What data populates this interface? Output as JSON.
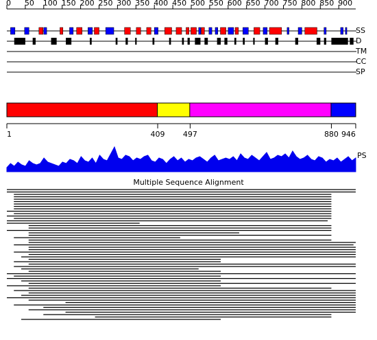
{
  "ruler": {
    "ticks": [
      0,
      50,
      100,
      150,
      200,
      250,
      300,
      350,
      400,
      450,
      500,
      550,
      600,
      650,
      700,
      750,
      800,
      850,
      900
    ]
  },
  "tracks": [
    "SS",
    "D",
    "TM",
    "CC",
    "SP"
  ],
  "ss": {
    "helix_color": "#ff0000",
    "strand_color": "#0000ff",
    "helix": [
      [
        87,
        98
      ],
      [
        144,
        152
      ],
      [
        189,
        204
      ],
      [
        237,
        250
      ],
      [
        319,
        335
      ],
      [
        351,
        363
      ],
      [
        379,
        391
      ],
      [
        428,
        447
      ],
      [
        459,
        474
      ],
      [
        486,
        494
      ],
      [
        499,
        514
      ],
      [
        527,
        536
      ],
      [
        579,
        594
      ],
      [
        619,
        628
      ],
      [
        670,
        686
      ],
      [
        712,
        745
      ],
      [
        808,
        841
      ]
    ],
    "strand": [
      [
        10,
        22
      ],
      [
        48,
        60
      ],
      [
        100,
        108
      ],
      [
        170,
        180
      ],
      [
        220,
        232
      ],
      [
        268,
        290
      ],
      [
        400,
        410
      ],
      [
        520,
        526
      ],
      [
        548,
        556
      ],
      [
        565,
        572
      ],
      [
        600,
        615
      ],
      [
        640,
        655
      ],
      [
        695,
        706
      ],
      [
        760,
        765
      ],
      [
        790,
        800
      ],
      [
        860,
        866
      ],
      [
        905,
        912
      ],
      [
        918,
        922
      ]
    ]
  },
  "disorder": [
    [
      20,
      50
    ],
    [
      70,
      78
    ],
    [
      120,
      135
    ],
    [
      160,
      175
    ],
    [
      225,
      230
    ],
    [
      295,
      300
    ],
    [
      322,
      328
    ],
    [
      348,
      352
    ],
    [
      395,
      400
    ],
    [
      440,
      445
    ],
    [
      475,
      480
    ],
    [
      490,
      496
    ],
    [
      510,
      525
    ],
    [
      536,
      545
    ],
    [
      570,
      580
    ],
    [
      590,
      598
    ],
    [
      617,
      622
    ],
    [
      640,
      645
    ],
    [
      668,
      672
    ],
    [
      700,
      708
    ],
    [
      728,
      736
    ],
    [
      782,
      790
    ],
    [
      840,
      850
    ],
    [
      860,
      866
    ],
    [
      880,
      925
    ],
    [
      930,
      940
    ]
  ],
  "domains": {
    "boundaries": [
      1,
      409,
      497,
      880,
      946
    ],
    "colors": [
      "#ff0000",
      "#ffff00",
      "#ff00ff",
      "#0000ff"
    ]
  },
  "ps": {
    "label": "PS",
    "color": "#0000ee",
    "ylim": [
      0,
      1
    ],
    "values": [
      0.15,
      0.3,
      0.2,
      0.35,
      0.25,
      0.2,
      0.4,
      0.3,
      0.25,
      0.3,
      0.5,
      0.35,
      0.3,
      0.25,
      0.2,
      0.35,
      0.3,
      0.45,
      0.4,
      0.3,
      0.55,
      0.4,
      0.35,
      0.5,
      0.3,
      0.6,
      0.45,
      0.4,
      0.65,
      0.9,
      0.5,
      0.45,
      0.6,
      0.55,
      0.4,
      0.5,
      0.45,
      0.55,
      0.6,
      0.4,
      0.35,
      0.5,
      0.45,
      0.3,
      0.45,
      0.55,
      0.4,
      0.5,
      0.35,
      0.45,
      0.4,
      0.5,
      0.55,
      0.45,
      0.35,
      0.5,
      0.6,
      0.4,
      0.45,
      0.5,
      0.45,
      0.55,
      0.4,
      0.65,
      0.5,
      0.45,
      0.6,
      0.5,
      0.4,
      0.55,
      0.7,
      0.45,
      0.5,
      0.6,
      0.55,
      0.65,
      0.5,
      0.75,
      0.55,
      0.45,
      0.5,
      0.6,
      0.45,
      0.4,
      0.55,
      0.5,
      0.35,
      0.45,
      0.4,
      0.5,
      0.35,
      0.45,
      0.55,
      0.4,
      0.5
    ]
  },
  "msa": {
    "title": "Multiple Sequence Alignment",
    "alignments": [
      [
        1,
        946
      ],
      [
        1,
        946
      ],
      [
        20,
        880
      ],
      [
        20,
        880
      ],
      [
        20,
        880
      ],
      [
        20,
        880
      ],
      [
        20,
        880
      ],
      [
        20,
        880
      ],
      [
        20,
        880
      ],
      [
        1,
        880
      ],
      [
        20,
        880
      ],
      [
        1,
        880
      ],
      [
        20,
        880
      ],
      [
        1,
        870
      ],
      [
        1,
        360
      ],
      [
        60,
        880
      ],
      [
        60,
        880
      ],
      [
        1,
        880
      ],
      [
        60,
        630
      ],
      [
        60,
        880
      ],
      [
        20,
        470
      ],
      [
        60,
        880
      ],
      [
        60,
        946
      ],
      [
        20,
        940
      ],
      [
        60,
        946
      ],
      [
        60,
        946
      ],
      [
        20,
        946
      ],
      [
        60,
        946
      ],
      [
        40,
        946
      ],
      [
        60,
        580
      ],
      [
        20,
        580
      ],
      [
        60,
        946
      ],
      [
        20,
        946
      ],
      [
        40,
        520
      ],
      [
        60,
        580
      ],
      [
        1,
        946
      ],
      [
        20,
        580
      ],
      [
        1,
        946
      ],
      [
        40,
        580
      ],
      [
        60,
        946
      ],
      [
        1,
        580
      ],
      [
        60,
        880
      ],
      [
        20,
        946
      ],
      [
        60,
        946
      ],
      [
        40,
        946
      ],
      [
        1,
        946
      ],
      [
        60,
        946
      ],
      [
        160,
        946
      ],
      [
        20,
        946
      ],
      [
        100,
        946
      ],
      [
        60,
        946
      ],
      [
        160,
        946
      ],
      [
        100,
        880
      ],
      [
        240,
        880
      ],
      [
        40,
        580
      ]
    ]
  }
}
